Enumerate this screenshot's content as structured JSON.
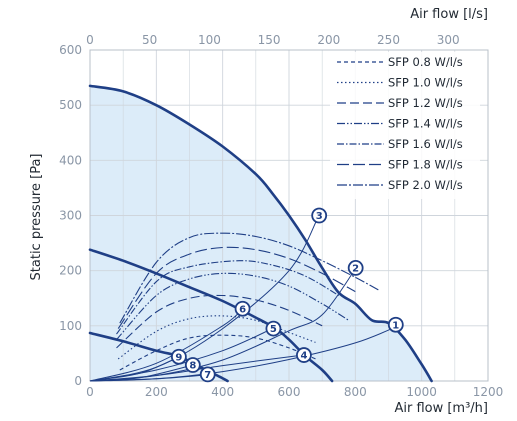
{
  "chart_data": {
    "type": "line",
    "x_top_label": "Air flow [l/s]",
    "x_bottom_label": "Air flow [m³/h]",
    "ylabel": "Static pressure [Pa]",
    "xlim": [
      0,
      1200
    ],
    "ylim": [
      0,
      600
    ],
    "x_ticks": [
      "0",
      "200",
      "400",
      "600",
      "800",
      "1000",
      "1200"
    ],
    "x_top_ticks": [
      "0",
      "50",
      "100",
      "150",
      "200",
      "250",
      "300"
    ],
    "y_ticks": [
      "0",
      "100",
      "200",
      "300",
      "400",
      "500",
      "600"
    ],
    "grid": true,
    "legend_position": "top-right",
    "colors": {
      "main": "#1f3f86",
      "fill": "#dcecf9",
      "grid": "#cfd5dc",
      "axis": "#8a96a6"
    },
    "fan_curves": [
      {
        "points": [
          [
            0,
            535
          ],
          [
            100,
            525
          ],
          [
            200,
            500
          ],
          [
            300,
            465
          ],
          [
            400,
            425
          ],
          [
            500,
            375
          ],
          [
            550,
            340
          ],
          [
            600,
            300
          ],
          [
            650,
            255
          ],
          [
            700,
            205
          ],
          [
            750,
            160
          ],
          [
            800,
            140
          ],
          [
            850,
            110
          ],
          [
            900,
            105
          ],
          [
            950,
            75
          ],
          [
            1000,
            30
          ],
          [
            1030,
            0
          ]
        ]
      },
      {
        "points": [
          [
            0,
            238
          ],
          [
            100,
            218
          ],
          [
            200,
            195
          ],
          [
            300,
            170
          ],
          [
            400,
            145
          ],
          [
            500,
            115
          ],
          [
            560,
            95
          ],
          [
            600,
            75
          ],
          [
            650,
            45
          ],
          [
            700,
            20
          ],
          [
            730,
            0
          ]
        ]
      },
      {
        "points": [
          [
            0,
            87
          ],
          [
            100,
            72
          ],
          [
            200,
            55
          ],
          [
            270,
            45
          ],
          [
            300,
            35
          ],
          [
            350,
            20
          ],
          [
            390,
            8
          ],
          [
            415,
            0
          ]
        ]
      }
    ],
    "system_curves": [
      {
        "points": [
          [
            0,
            0
          ],
          [
            200,
            4
          ],
          [
            400,
            17
          ],
          [
            600,
            39
          ],
          [
            800,
            69
          ],
          [
            930,
            100
          ]
        ]
      },
      {
        "points": [
          [
            0,
            0
          ],
          [
            200,
            10
          ],
          [
            400,
            38
          ],
          [
            600,
            91
          ],
          [
            700,
            120
          ],
          [
            800,
            203
          ]
        ]
      },
      {
        "points": [
          [
            0,
            0
          ],
          [
            200,
            25
          ],
          [
            400,
            95
          ],
          [
            600,
            200
          ],
          [
            690,
            300
          ]
        ]
      },
      {
        "points": [
          [
            0,
            0
          ],
          [
            200,
            10
          ],
          [
            400,
            28
          ],
          [
            640,
            47
          ]
        ]
      },
      {
        "points": [
          [
            0,
            0
          ],
          [
            200,
            20
          ],
          [
            400,
            55
          ],
          [
            550,
            95
          ]
        ]
      },
      {
        "points": [
          [
            0,
            0
          ],
          [
            200,
            32
          ],
          [
            400,
            100
          ],
          [
            460,
            131
          ]
        ]
      },
      {
        "points": [
          [
            0,
            0
          ],
          [
            200,
            4
          ],
          [
            350,
            11
          ]
        ]
      },
      {
        "points": [
          [
            0,
            0
          ],
          [
            150,
            6
          ],
          [
            310,
            29
          ]
        ]
      },
      {
        "points": [
          [
            0,
            0
          ],
          [
            150,
            14
          ],
          [
            270,
            44
          ]
        ]
      }
    ],
    "operating_points": [
      {
        "label": "1",
        "x": 922,
        "y": 102
      },
      {
        "label": "2",
        "x": 801,
        "y": 205
      },
      {
        "label": "3",
        "x": 691,
        "y": 300
      },
      {
        "label": "4",
        "x": 645,
        "y": 47
      },
      {
        "label": "5",
        "x": 553,
        "y": 95
      },
      {
        "label": "6",
        "x": 460,
        "y": 131
      },
      {
        "label": "7",
        "x": 355,
        "y": 12
      },
      {
        "label": "8",
        "x": 310,
        "y": 29
      },
      {
        "label": "9",
        "x": 268,
        "y": 44
      }
    ],
    "sfp_series": [
      {
        "name": "SFP 0.8 W/l/s",
        "dash": "4,3",
        "points": [
          [
            90,
            20
          ],
          [
            200,
            55
          ],
          [
            300,
            78
          ],
          [
            400,
            83
          ],
          [
            500,
            78
          ],
          [
            600,
            60
          ],
          [
            680,
            40
          ]
        ]
      },
      {
        "name": "SFP 1.0 W/l/s",
        "dash": "1.5,2.5",
        "points": [
          [
            85,
            40
          ],
          [
            200,
            90
          ],
          [
            300,
            113
          ],
          [
            400,
            118
          ],
          [
            500,
            110
          ],
          [
            600,
            88
          ],
          [
            680,
            70
          ]
        ]
      },
      {
        "name": "SFP 1.2 W/l/s",
        "dash": "9,4",
        "points": [
          [
            80,
            60
          ],
          [
            200,
            125
          ],
          [
            300,
            150
          ],
          [
            400,
            155
          ],
          [
            500,
            147
          ],
          [
            600,
            128
          ],
          [
            700,
            100
          ]
        ]
      },
      {
        "name": "SFP 1.4 W/l/s",
        "dash": "8,2,1.5,2,1.5,2",
        "points": [
          [
            80,
            75
          ],
          [
            200,
            155
          ],
          [
            300,
            185
          ],
          [
            400,
            195
          ],
          [
            500,
            190
          ],
          [
            600,
            172
          ],
          [
            700,
            140
          ],
          [
            780,
            110
          ]
        ]
      },
      {
        "name": "SFP 1.6 W/l/s",
        "dash": "7,2,1.5,2",
        "points": [
          [
            80,
            85
          ],
          [
            200,
            180
          ],
          [
            300,
            207
          ],
          [
            450,
            218
          ],
          [
            550,
            210
          ],
          [
            650,
            190
          ],
          [
            750,
            155
          ]
        ]
      },
      {
        "name": "SFP 1.8 W/l/s",
        "dash": "12,4",
        "points": [
          [
            85,
            95
          ],
          [
            200,
            195
          ],
          [
            300,
            230
          ],
          [
            400,
            242
          ],
          [
            500,
            238
          ],
          [
            600,
            222
          ],
          [
            700,
            195
          ],
          [
            800,
            162
          ]
        ]
      },
      {
        "name": "SFP 2.0 W/l/s",
        "dash": "10,2,2,2",
        "points": [
          [
            90,
            105
          ],
          [
            200,
            215
          ],
          [
            300,
            260
          ],
          [
            400,
            268
          ],
          [
            500,
            262
          ],
          [
            600,
            245
          ],
          [
            700,
            218
          ],
          [
            800,
            188
          ],
          [
            870,
            165
          ]
        ]
      }
    ]
  }
}
